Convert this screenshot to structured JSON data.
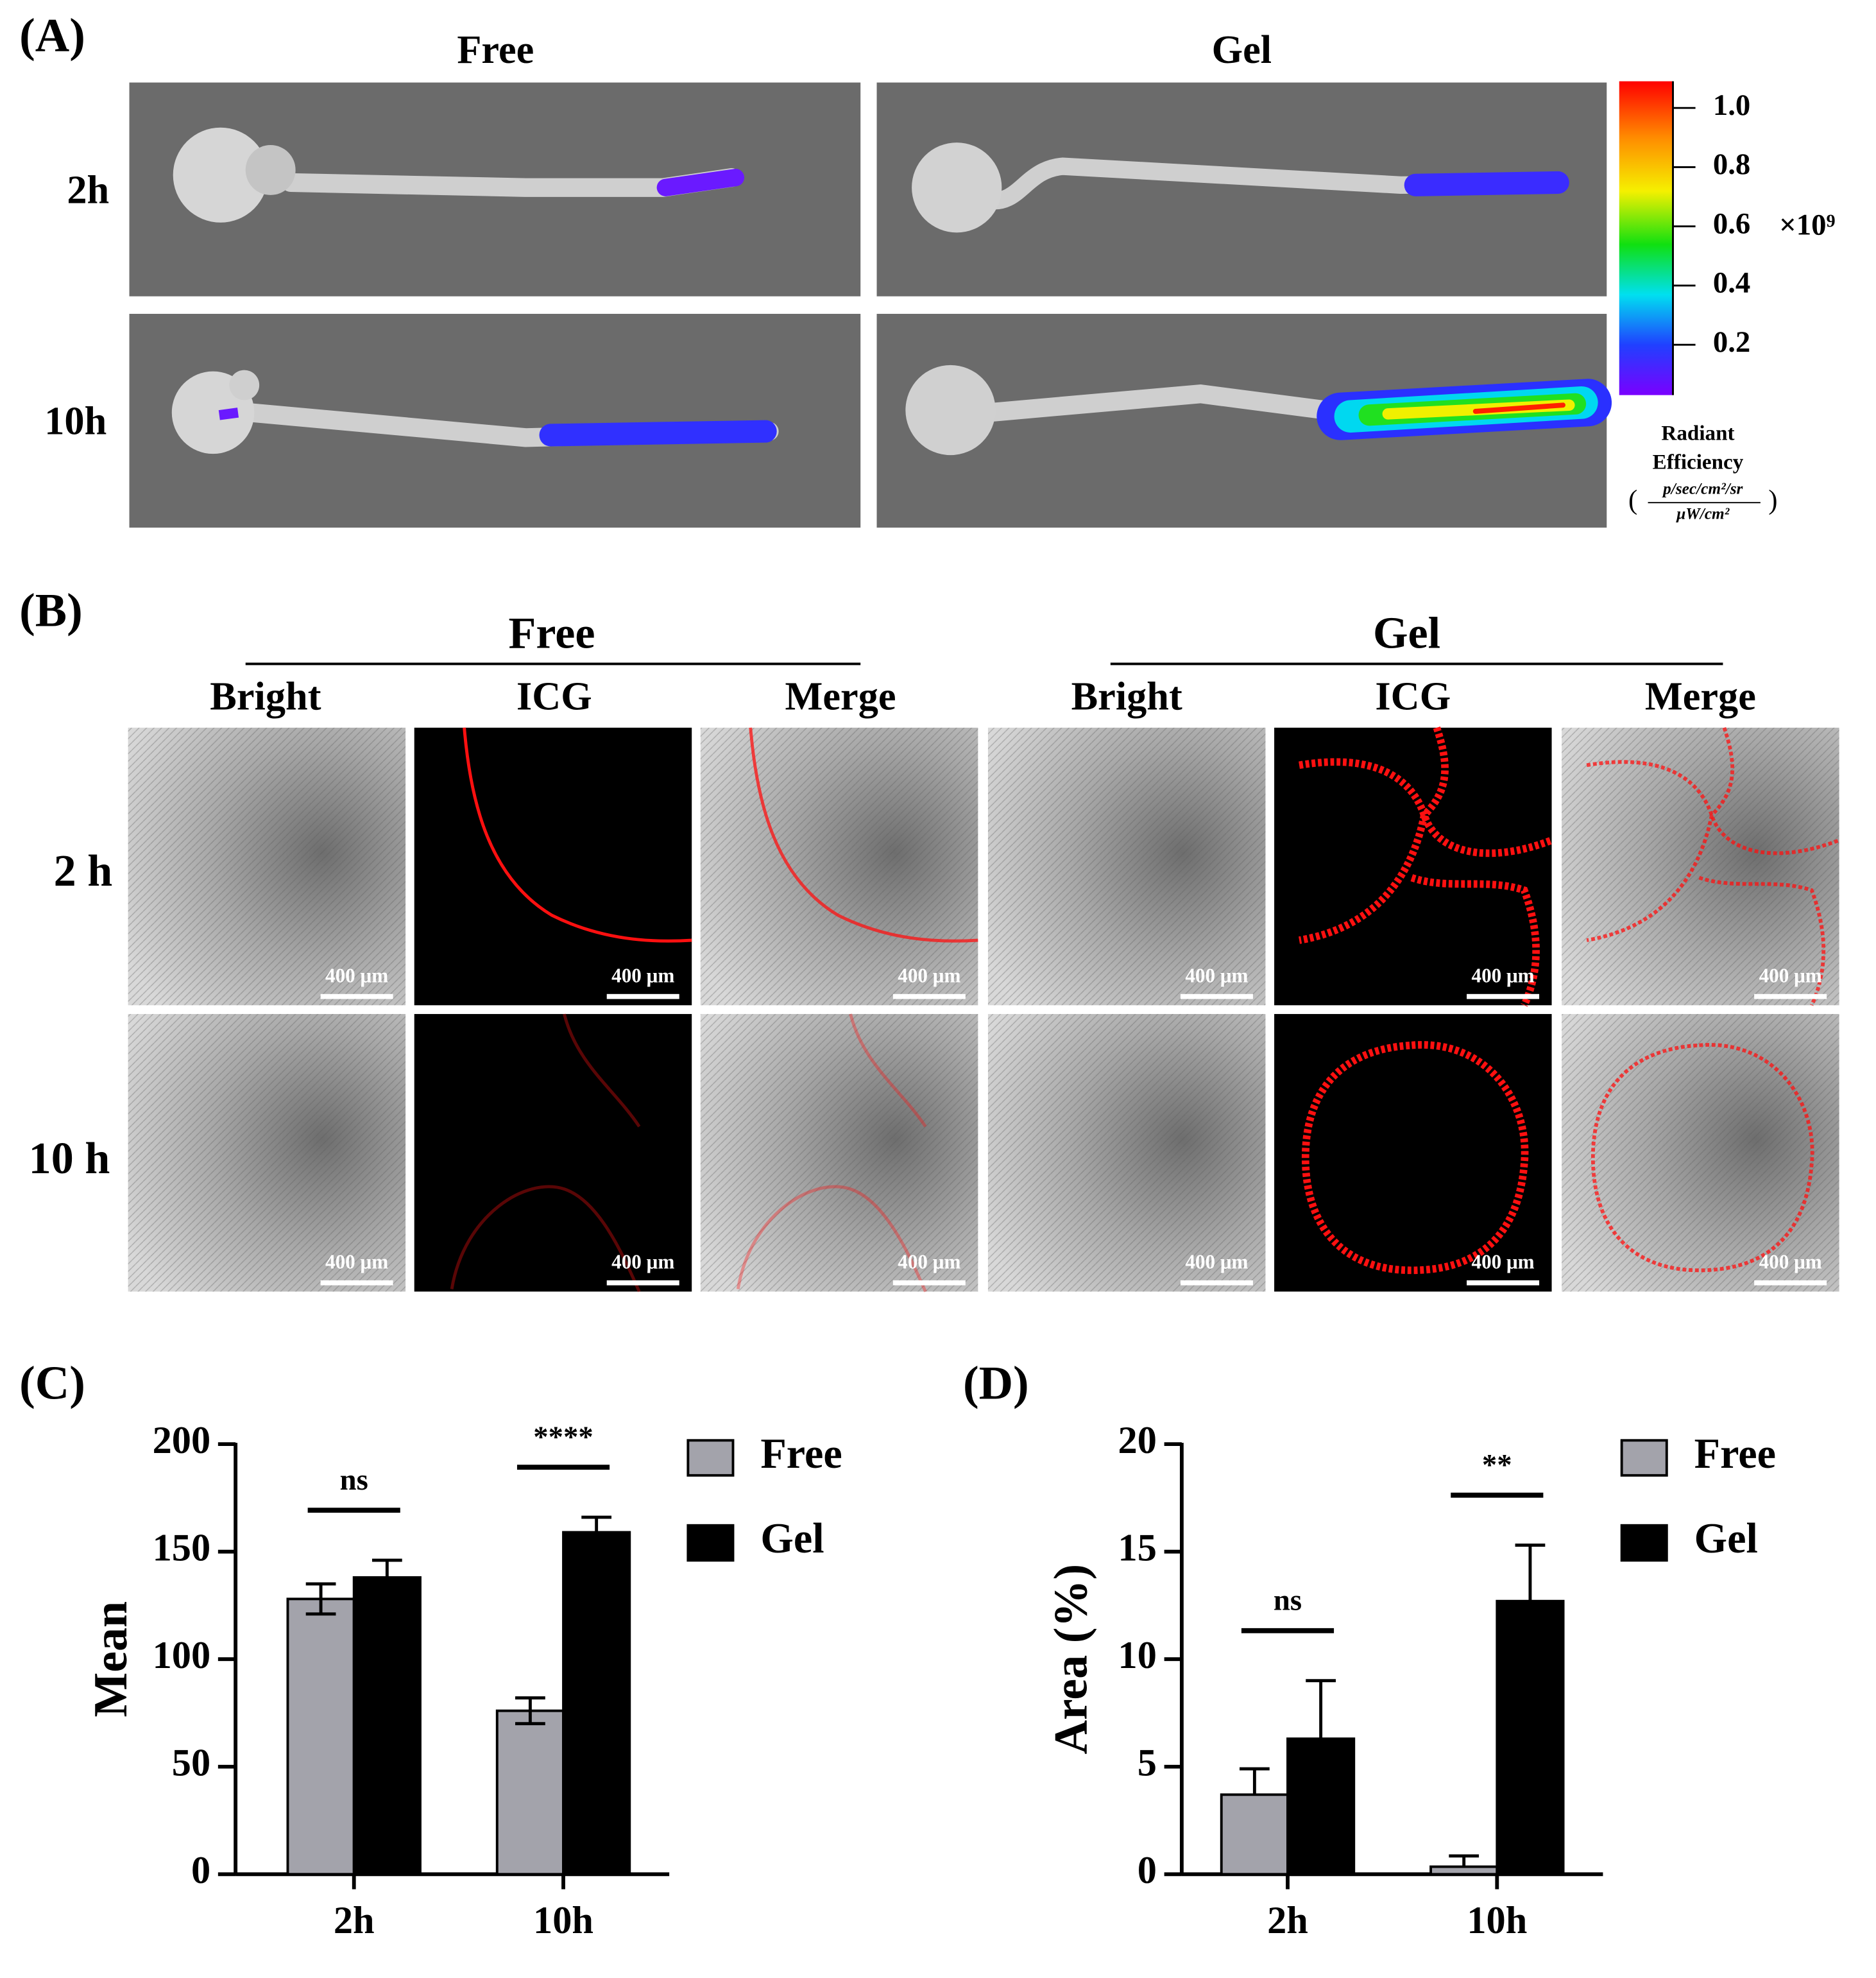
{
  "panel_a": {
    "label": "(A)",
    "columns": [
      "Free",
      "Gel"
    ],
    "rows": [
      "2h",
      "10h"
    ],
    "colorbar": {
      "lim": [
        0.03,
        1.09
      ],
      "ticks": [
        {
          "value": 1,
          "label": "1.0"
        },
        0.8,
        0.6,
        0.4,
        0.2
      ],
      "multiplier": "×10⁹",
      "title": [
        "Radiant",
        "Efficiency"
      ],
      "units": {
        "open": "(",
        "numerator": "p/sec/cm²/sr",
        "denominator": "μW/cm²",
        "close": ")"
      }
    }
  },
  "panel_b": {
    "label": "(B)",
    "groups": [
      {
        "name": "Free",
        "columns": [
          "Bright",
          "ICG",
          "Merge"
        ]
      },
      {
        "name": "Gel",
        "columns": [
          "Bright",
          "ICG",
          "Merge"
        ]
      }
    ],
    "rows": [
      "2 h",
      "10 h"
    ],
    "scale_bar": "400 μm"
  },
  "chart_data": [
    {
      "type": "bar",
      "label": "(C)",
      "ylabel": "Mean",
      "categories": [
        "2h",
        "10h"
      ],
      "series": [
        {
          "name": "Free",
          "color": "#a3a3ab",
          "values": [
            128,
            76
          ],
          "errors": [
            7,
            6
          ]
        },
        {
          "name": "Gel",
          "color": "#000000",
          "values": [
            138,
            159
          ],
          "errors": [
            8,
            7
          ]
        }
      ],
      "ylim": [
        0,
        200
      ],
      "yticks": [
        0,
        50,
        100,
        150,
        200
      ],
      "error_direction": "both",
      "annotations": [
        {
          "text": "ns",
          "category": 0
        },
        {
          "text": "****",
          "category": 1
        }
      ],
      "legend": "right"
    },
    {
      "type": "bar",
      "label": "(D)",
      "ylabel": "Area (%)",
      "categories": [
        "2h",
        "10h"
      ],
      "series": [
        {
          "name": "Free",
          "color": "#a3a3ab",
          "values": [
            3.7,
            0.35
          ],
          "errors": [
            1.2,
            0.5
          ]
        },
        {
          "name": "Gel",
          "color": "#000000",
          "values": [
            6.3,
            12.7
          ],
          "errors": [
            2.7,
            2.6
          ]
        }
      ],
      "ylim": [
        0,
        20
      ],
      "yticks": [
        0,
        5,
        10,
        15,
        20
      ],
      "error_direction": "up",
      "annotations": [
        {
          "text": "ns",
          "category": 0
        },
        {
          "text": "**",
          "category": 1
        }
      ],
      "legend": "right"
    }
  ]
}
